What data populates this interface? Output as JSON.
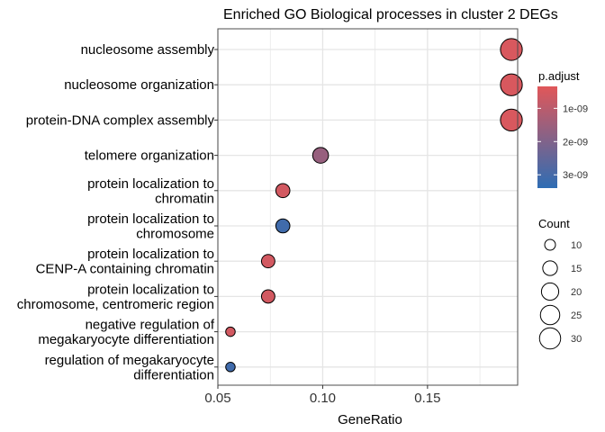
{
  "chart_data": {
    "type": "scatter",
    "title": "Enriched GO Biological processes in cluster 2 DEGs",
    "xlabel": "GeneRatio",
    "ylabel": "",
    "xlim": [
      0.05,
      0.193
    ],
    "xticks": [
      0.05,
      0.1,
      0.15
    ],
    "xtick_labels": [
      "0.05",
      "0.10",
      "0.15"
    ],
    "grid": true,
    "legend_position": "right",
    "colors": {
      "low_p": "#e15759",
      "high_p": "#2e6db4",
      "panel_border": "#4d4d4d",
      "grid": "#e5e5e5"
    },
    "points": [
      {
        "term": "nucleosome assembly",
        "gene_ratio": 0.19,
        "p_adjust": 5e-10,
        "count": 32
      },
      {
        "term": "nucleosome organization",
        "gene_ratio": 0.19,
        "p_adjust": 5e-10,
        "count": 32
      },
      {
        "term": "protein-DNA complex assembly",
        "gene_ratio": 0.19,
        "p_adjust": 5e-10,
        "count": 32
      },
      {
        "term": "telomere organization",
        "gene_ratio": 0.099,
        "p_adjust": 1.6e-09,
        "count": 17
      },
      {
        "term": "protein localization to chromatin",
        "gene_ratio": 0.081,
        "p_adjust": 6e-10,
        "count": 14
      },
      {
        "term": "protein localization to chromosome",
        "gene_ratio": 0.081,
        "p_adjust": 3.1e-09,
        "count": 14
      },
      {
        "term": "protein localization to CENP-A containing chromatin",
        "gene_ratio": 0.074,
        "p_adjust": 6e-10,
        "count": 13
      },
      {
        "term": "protein localization to chromosome, centromeric region",
        "gene_ratio": 0.074,
        "p_adjust": 6e-10,
        "count": 13
      },
      {
        "term": "negative regulation of megakaryocyte differentiation",
        "gene_ratio": 0.056,
        "p_adjust": 6e-10,
        "count": 9
      },
      {
        "term": "regulation of megakaryocyte differentiation",
        "gene_ratio": 0.056,
        "p_adjust": 3.1e-09,
        "count": 9
      }
    ],
    "y_labels": [
      [
        "nucleosome assembly"
      ],
      [
        "nucleosome organization"
      ],
      [
        "protein-DNA complex assembly"
      ],
      [
        "telomere organization"
      ],
      [
        "protein localization to",
        "chromatin"
      ],
      [
        "protein localization to",
        "chromosome"
      ],
      [
        "protein localization to",
        "CENP-A containing chromatin"
      ],
      [
        "protein localization to",
        "chromosome, centromeric region"
      ],
      [
        "negative regulation of",
        "megakaryocyte differentiation"
      ],
      [
        "regulation of megakaryocyte",
        "differentiation"
      ]
    ],
    "color_legend": {
      "title": "p.adjust",
      "domain": [
        3.4e-10,
        3.4e-09
      ],
      "tick_values": [
        1e-09,
        2e-09,
        3e-09
      ],
      "tick_labels": [
        "1e-09",
        "2e-09",
        "3e-09"
      ]
    },
    "size_legend": {
      "title": "Count",
      "values": [
        10,
        15,
        20,
        25,
        30
      ],
      "labels": [
        "10",
        "15",
        "20",
        "25",
        "30"
      ]
    }
  }
}
